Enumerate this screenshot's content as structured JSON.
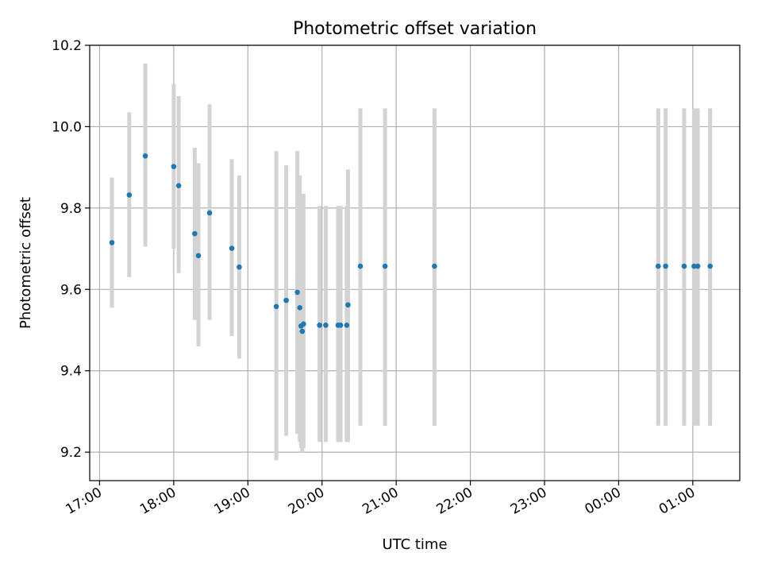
{
  "chart_data": {
    "type": "scatter",
    "title": "Photometric offset variation",
    "xlabel": "UTC time",
    "ylabel": "Photometric offset",
    "x_axis": "time",
    "xlim": [
      "16:52",
      "01:38"
    ],
    "ylim": [
      9.13,
      10.2
    ],
    "x_ticks": [
      "17:00",
      "18:00",
      "19:00",
      "20:00",
      "21:00",
      "22:00",
      "23:00",
      "00:00",
      "01:00"
    ],
    "y_ticks": [
      "9.2",
      "9.4",
      "9.6",
      "9.8",
      "10.0",
      "10.2"
    ],
    "grid": true,
    "legend": "none",
    "point_color": "#1f77b4",
    "errorbar_color": "#d3d3d3",
    "points": [
      {
        "x": "17:10",
        "y": 9.715,
        "ylo": 9.555,
        "yhi": 9.875
      },
      {
        "x": "17:24",
        "y": 9.832,
        "ylo": 9.63,
        "yhi": 10.035
      },
      {
        "x": "17:37",
        "y": 9.928,
        "ylo": 9.705,
        "yhi": 10.155
      },
      {
        "x": "18:00",
        "y": 9.902,
        "ylo": 9.7,
        "yhi": 10.105
      },
      {
        "x": "18:04",
        "y": 9.855,
        "ylo": 9.64,
        "yhi": 10.075
      },
      {
        "x": "18:17",
        "y": 9.737,
        "ylo": 9.525,
        "yhi": 9.948
      },
      {
        "x": "18:20",
        "y": 9.683,
        "ylo": 9.46,
        "yhi": 9.91
      },
      {
        "x": "18:29",
        "y": 9.788,
        "ylo": 9.525,
        "yhi": 10.055
      },
      {
        "x": "18:47",
        "y": 9.701,
        "ylo": 9.485,
        "yhi": 9.92
      },
      {
        "x": "18:53",
        "y": 9.655,
        "ylo": 9.43,
        "yhi": 9.88
      },
      {
        "x": "19:23",
        "y": 9.558,
        "ylo": 9.18,
        "yhi": 9.94
      },
      {
        "x": "19:31",
        "y": 9.573,
        "ylo": 9.24,
        "yhi": 9.905
      },
      {
        "x": "19:40",
        "y": 9.593,
        "ylo": 9.245,
        "yhi": 9.94
      },
      {
        "x": "19:42",
        "y": 9.555,
        "ylo": 9.225,
        "yhi": 9.88
      },
      {
        "x": "19:43",
        "y": 9.51,
        "ylo": 9.21,
        "yhi": 9.815
      },
      {
        "x": "19:44",
        "y": 9.497,
        "ylo": 9.2,
        "yhi": 9.805
      },
      {
        "x": "19:45",
        "y": 9.515,
        "ylo": 9.21,
        "yhi": 9.835
      },
      {
        "x": "19:58",
        "y": 9.512,
        "ylo": 9.225,
        "yhi": 9.805
      },
      {
        "x": "20:03",
        "y": 9.512,
        "ylo": 9.225,
        "yhi": 9.805
      },
      {
        "x": "20:13",
        "y": 9.512,
        "ylo": 9.225,
        "yhi": 9.805
      },
      {
        "x": "20:15",
        "y": 9.512,
        "ylo": 9.225,
        "yhi": 9.805
      },
      {
        "x": "20:20",
        "y": 9.512,
        "ylo": 9.225,
        "yhi": 9.805
      },
      {
        "x": "20:21",
        "y": 9.562,
        "ylo": 9.225,
        "yhi": 9.895
      },
      {
        "x": "20:31",
        "y": 9.657,
        "ylo": 9.265,
        "yhi": 10.045
      },
      {
        "x": "20:51",
        "y": 9.657,
        "ylo": 9.265,
        "yhi": 10.045
      },
      {
        "x": "21:31",
        "y": 9.657,
        "ylo": 9.265,
        "yhi": 10.045
      },
      {
        "x": "00:32",
        "y": 9.657,
        "ylo": 9.265,
        "yhi": 10.045
      },
      {
        "x": "00:38",
        "y": 9.657,
        "ylo": 9.265,
        "yhi": 10.045
      },
      {
        "x": "00:53",
        "y": 9.657,
        "ylo": 9.265,
        "yhi": 10.045
      },
      {
        "x": "01:01",
        "y": 9.657,
        "ylo": 9.265,
        "yhi": 10.045
      },
      {
        "x": "01:04",
        "y": 9.657,
        "ylo": 9.265,
        "yhi": 10.045
      },
      {
        "x": "01:14",
        "y": 9.657,
        "ylo": 9.265,
        "yhi": 10.045
      }
    ]
  }
}
